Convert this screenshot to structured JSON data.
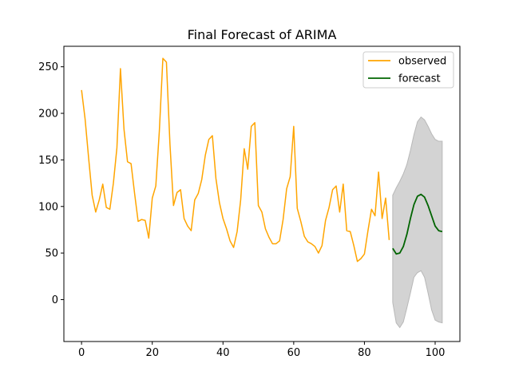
{
  "chart_data": {
    "type": "line",
    "title": "Final Forecast of ARIMA",
    "xlabel": "",
    "ylabel": "",
    "xlim": [
      -5,
      107
    ],
    "ylim": [
      -45,
      272
    ],
    "x_ticks": [
      0,
      20,
      40,
      60,
      80,
      100
    ],
    "y_ticks": [
      0,
      50,
      100,
      150,
      200,
      250
    ],
    "grid": false,
    "legend_placement": "top-right",
    "series": [
      {
        "name": "observed",
        "color": "#ffa500",
        "x": [
          0,
          1,
          2,
          3,
          4,
          5,
          6,
          7,
          8,
          9,
          10,
          11,
          12,
          13,
          14,
          15,
          16,
          17,
          18,
          19,
          20,
          21,
          22,
          23,
          24,
          25,
          26,
          27,
          28,
          29,
          30,
          31,
          32,
          33,
          34,
          35,
          36,
          37,
          38,
          39,
          40,
          41,
          42,
          43,
          44,
          45,
          46,
          47,
          48,
          49,
          50,
          51,
          52,
          53,
          54,
          55,
          56,
          57,
          58,
          59,
          60,
          61,
          62,
          63,
          64,
          65,
          66,
          67,
          68,
          69,
          70,
          71,
          72,
          73,
          74,
          75,
          76,
          77,
          78,
          79,
          80,
          81,
          82,
          83,
          84,
          85,
          86,
          87,
          88
        ],
        "values": [
          225,
          194,
          152,
          112,
          94,
          107,
          124,
          99,
          97,
          125,
          163,
          248,
          183,
          148,
          146,
          114,
          84,
          86,
          85,
          66,
          109,
          122,
          181,
          259,
          255,
          167,
          101,
          115,
          118,
          87,
          79,
          74,
          107,
          114,
          129,
          155,
          172,
          176,
          130,
          104,
          87,
          76,
          63,
          56,
          73,
          107,
          162,
          140,
          186,
          190,
          101,
          94,
          76,
          67,
          60,
          60,
          63,
          86,
          119,
          132,
          186,
          98,
          84,
          68,
          62,
          60,
          57,
          50,
          58,
          85,
          99,
          118,
          122,
          94,
          124,
          74,
          73,
          58,
          41,
          44,
          49,
          74,
          97,
          90,
          137,
          87,
          109,
          64,
          null
        ]
      },
      {
        "name": "forecast",
        "color": "#006400",
        "x": [
          88,
          89,
          90,
          91,
          92,
          93,
          94,
          95,
          96,
          97,
          98,
          99,
          100,
          101,
          102
        ],
        "values": [
          55,
          49,
          50,
          57,
          70,
          87,
          102,
          111,
          113,
          110,
          101,
          90,
          79,
          74,
          73
        ]
      }
    ],
    "confidence_band": {
      "color": "#d3d3d3",
      "x": [
        88,
        89,
        90,
        91,
        92,
        93,
        94,
        95,
        96,
        97,
        98,
        99,
        100,
        101,
        102
      ],
      "lower": [
        -3,
        -25,
        -30,
        -24,
        -9,
        7,
        24,
        29,
        31,
        24,
        7,
        -11,
        -22,
        -24,
        -25
      ],
      "upper": [
        112,
        120,
        127,
        135,
        145,
        160,
        177,
        191,
        196,
        193,
        186,
        178,
        172,
        170,
        170
      ]
    }
  }
}
